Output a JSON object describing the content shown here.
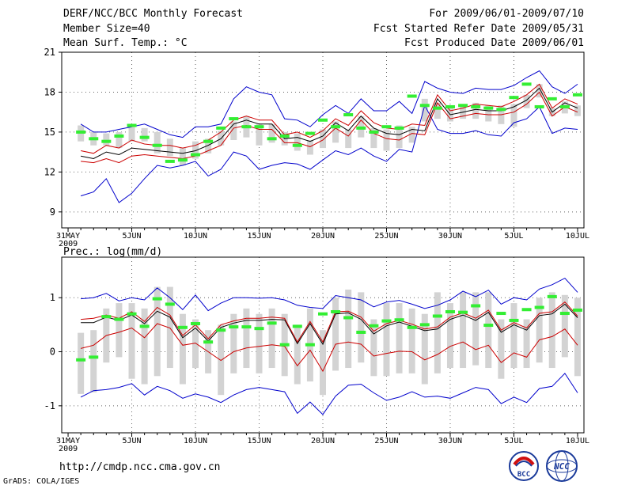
{
  "header": {
    "title": "DERF/NCC/BCC Monthly Forecast",
    "member_size": "Member Size=40",
    "variable1": "Mean Surf. Temp.: °C",
    "forecast_period": "For 2009/06/01-2009/07/10",
    "start_date": "Fcst Started Refer Date 2009/05/31",
    "produced_date": "Fcst Produced Date 2009/06/01"
  },
  "footer": {
    "url": "http://cmdp.ncc.cma.gov.cn",
    "credit": "GrADS: COLA/IGES",
    "logo1_text": "BCC",
    "logo2_text": "NCC"
  },
  "colors": {
    "blue": "#0000cc",
    "red": "#cc0000",
    "black": "#000000",
    "box": "#d3d3d3",
    "green": "#33ee33",
    "grid": "#666666"
  },
  "chart_data": [
    {
      "type": "ensemble",
      "title": "Mean Surf. Temp.: °C",
      "xlabel": "",
      "ylabel": "",
      "ylim": [
        7.8,
        21
      ],
      "yticks": [
        9,
        12,
        15,
        18,
        21
      ],
      "x_tick_labels": [
        "31MAY",
        "5JUN",
        "10JUN",
        "15JUN",
        "20JUN",
        "25JUN",
        "30JUN",
        "5JUL",
        "10JUL"
      ],
      "x_tick_days": [
        0,
        5,
        10,
        15,
        20,
        25,
        30,
        35,
        40
      ],
      "year_label": "2009",
      "day_start": 1,
      "series": [
        {
          "name": "max",
          "color": "#0000cc",
          "values": [
            10.2,
            10.5,
            11.5,
            9.7,
            10.4,
            11.5,
            12.5,
            12.3,
            12.5,
            12.8,
            11.7,
            12.2,
            13.5,
            13.2,
            12.2,
            12.5,
            12.7,
            12.6,
            12.2,
            12.9,
            13.6,
            13.3,
            13.8,
            13.2,
            12.8,
            13.7,
            13.5,
            17.0,
            15.2,
            14.9,
            14.9,
            15.1,
            14.8,
            14.7,
            15.7,
            16.0,
            16.9,
            14.9,
            15.3,
            15.2
          ]
        },
        {
          "name": "q_low",
          "color": "#cc0000",
          "values": [
            12.8,
            12.7,
            13.0,
            12.7,
            13.2,
            13.3,
            13.2,
            13.1,
            13.0,
            13.2,
            13.6,
            14.0,
            15.3,
            15.5,
            15.2,
            15.2,
            14.2,
            14.2,
            13.9,
            14.4,
            15.3,
            14.7,
            15.9,
            14.9,
            14.5,
            14.4,
            14.9,
            14.8,
            17.2,
            16.0,
            16.2,
            16.4,
            16.3,
            16.3,
            16.5,
            17.1,
            18.0,
            16.2,
            16.9,
            16.5
          ]
        },
        {
          "name": "mean",
          "color": "#000000",
          "values": [
            13.2,
            13.0,
            13.5,
            13.3,
            13.8,
            13.7,
            13.6,
            13.5,
            13.4,
            13.6,
            14.0,
            14.5,
            15.6,
            15.9,
            15.6,
            15.6,
            14.5,
            14.6,
            14.3,
            14.7,
            15.7,
            15.1,
            16.2,
            15.3,
            14.9,
            14.8,
            15.2,
            15.1,
            17.5,
            16.3,
            16.5,
            16.7,
            16.6,
            16.6,
            16.9,
            17.4,
            18.3,
            16.5,
            17.2,
            16.8
          ]
        },
        {
          "name": "q_high",
          "color": "#cc0000",
          "values": [
            13.6,
            13.4,
            14.0,
            13.8,
            14.4,
            14.1,
            14.0,
            14.0,
            13.8,
            14.0,
            14.4,
            15.0,
            15.9,
            16.2,
            15.9,
            15.9,
            14.8,
            15.0,
            14.6,
            15.1,
            16.0,
            15.5,
            16.6,
            15.7,
            15.3,
            15.2,
            15.6,
            15.5,
            17.8,
            16.6,
            16.8,
            17.1,
            17.0,
            16.9,
            17.3,
            17.8,
            18.6,
            16.8,
            17.5,
            17.1
          ]
        },
        {
          "name": "min",
          "color": "#0000cc",
          "values": [
            15.6,
            15.0,
            15.0,
            15.2,
            15.4,
            15.6,
            15.2,
            14.8,
            14.6,
            15.4,
            15.4,
            15.6,
            17.5,
            18.4,
            18.0,
            17.8,
            16.0,
            15.9,
            15.4,
            16.3,
            17.0,
            16.4,
            17.5,
            16.6,
            16.6,
            17.3,
            16.4,
            18.8,
            18.3,
            18.0,
            17.9,
            18.3,
            18.2,
            18.2,
            18.5,
            19.1,
            19.6,
            18.4,
            17.9,
            18.6
          ]
        }
      ],
      "boxes_low": [
        14.3,
        14.0,
        14.0,
        13.8,
        14.3,
        14.3,
        13.4,
        13.2,
        12.5,
        13.0,
        13.4,
        14.0,
        14.4,
        14.6,
        14.0,
        14.2,
        14.0,
        13.6,
        13.3,
        13.8,
        14.2,
        13.8,
        14.6,
        13.8,
        13.6,
        13.8,
        14.2,
        15.8,
        16.0,
        15.8,
        16.0,
        16.0,
        15.8,
        15.6,
        15.4,
        16.8,
        17.6,
        16.2,
        16.4,
        16.2
      ],
      "boxes_high": [
        15.5,
        15.0,
        14.9,
        15.0,
        15.6,
        15.3,
        15.0,
        14.5,
        13.8,
        14.3,
        14.5,
        15.1,
        15.8,
        16.2,
        15.6,
        15.6,
        15.0,
        14.9,
        14.4,
        15.2,
        15.8,
        15.2,
        16.2,
        15.3,
        15.2,
        15.5,
        15.4,
        17.5,
        17.2,
        16.9,
        17.0,
        17.2,
        17.0,
        17.0,
        17.1,
        17.8,
        18.6,
        16.8,
        17.3,
        17.0
      ],
      "observed": [
        15.0,
        14.5,
        14.3,
        14.7,
        15.5,
        14.6,
        14.0,
        12.8,
        12.9,
        13.3,
        14.3,
        15.3,
        16.0,
        15.4,
        15.4,
        14.5,
        14.7,
        14.0,
        14.9,
        15.9,
        15.4,
        16.3,
        15.3,
        15.0,
        15.4,
        15.3,
        17.7,
        17.0,
        16.8,
        16.9,
        17.0,
        16.9,
        16.8,
        16.7,
        17.6,
        18.6,
        16.9,
        17.5,
        16.9,
        17.8
      ]
    },
    {
      "type": "ensemble",
      "title": "Prec.: log(mm/d)",
      "xlabel": "",
      "ylabel": "",
      "ylim": [
        -1.5,
        1.75
      ],
      "yticks": [
        -1,
        0,
        1
      ],
      "x_tick_labels": [
        "31MAY",
        "5JUN",
        "10JUN",
        "15JUN",
        "20JUN",
        "25JUN",
        "30JUN",
        "5JUL",
        "10JUL"
      ],
      "x_tick_days": [
        0,
        5,
        10,
        15,
        20,
        25,
        30,
        35,
        40
      ],
      "year_label": "2009",
      "day_start": 1,
      "series": [
        {
          "name": "max",
          "color": "#0000cc",
          "values": [
            -0.84,
            -0.72,
            -0.7,
            -0.66,
            -0.59,
            -0.8,
            -0.64,
            -0.72,
            -0.86,
            -0.78,
            -0.84,
            -0.94,
            -0.8,
            -0.7,
            -0.66,
            -0.7,
            -0.74,
            -1.14,
            -0.93,
            -1.16,
            -0.82,
            -0.62,
            -0.6,
            -0.76,
            -0.9,
            -0.84,
            -0.74,
            -0.84,
            -0.82,
            -0.86,
            -0.76,
            -0.66,
            -0.7,
            -0.96,
            -0.84,
            -0.94,
            -0.68,
            -0.64,
            -0.4,
            -0.76
          ]
        },
        {
          "name": "q_low",
          "color": "#cc0000",
          "values": [
            0.06,
            0.12,
            0.3,
            0.36,
            0.44,
            0.26,
            0.52,
            0.44,
            0.12,
            0.16,
            0.0,
            -0.16,
            0.0,
            0.07,
            0.1,
            0.13,
            0.1,
            -0.26,
            0.03,
            -0.36,
            0.14,
            0.18,
            0.14,
            -0.08,
            -0.03,
            0.01,
            0.0,
            -0.15,
            -0.05,
            0.1,
            0.18,
            0.04,
            0.12,
            -0.2,
            -0.02,
            -0.1,
            0.22,
            0.28,
            0.42,
            0.12
          ]
        },
        {
          "name": "mean",
          "color": "#000000",
          "values": [
            0.54,
            0.54,
            0.64,
            0.58,
            0.68,
            0.52,
            0.75,
            0.64,
            0.26,
            0.44,
            0.2,
            0.45,
            0.53,
            0.58,
            0.58,
            0.6,
            0.59,
            0.15,
            0.52,
            0.14,
            0.7,
            0.72,
            0.6,
            0.33,
            0.48,
            0.55,
            0.47,
            0.39,
            0.42,
            0.6,
            0.68,
            0.58,
            0.73,
            0.36,
            0.5,
            0.4,
            0.67,
            0.7,
            0.88,
            0.63
          ]
        },
        {
          "name": "q_high",
          "color": "#cc0000",
          "values": [
            0.6,
            0.62,
            0.68,
            0.62,
            0.74,
            0.56,
            0.82,
            0.68,
            0.3,
            0.5,
            0.24,
            0.5,
            0.57,
            0.62,
            0.62,
            0.64,
            0.62,
            0.18,
            0.56,
            0.18,
            0.74,
            0.75,
            0.64,
            0.38,
            0.52,
            0.58,
            0.51,
            0.42,
            0.46,
            0.64,
            0.72,
            0.62,
            0.77,
            0.4,
            0.54,
            0.44,
            0.71,
            0.74,
            0.92,
            0.66
          ]
        },
        {
          "name": "min",
          "color": "#0000cc",
          "values": [
            0.98,
            1.0,
            1.08,
            0.94,
            1.0,
            0.96,
            1.18,
            1.0,
            0.78,
            1.05,
            0.76,
            0.9,
            1.0,
            1.0,
            0.99,
            1.0,
            0.96,
            0.86,
            0.82,
            0.8,
            1.04,
            1.0,
            0.96,
            0.83,
            0.92,
            0.95,
            0.88,
            0.8,
            0.86,
            0.96,
            1.12,
            1.02,
            1.14,
            0.88,
            1.0,
            0.96,
            1.16,
            1.24,
            1.36,
            1.1
          ]
        }
      ],
      "boxes_low": [
        -0.78,
        -0.75,
        -0.2,
        -0.1,
        -0.5,
        -0.6,
        -0.45,
        -0.3,
        -0.6,
        -0.3,
        -0.4,
        -0.8,
        -0.4,
        -0.3,
        -0.4,
        -0.3,
        -0.45,
        -0.6,
        -0.55,
        -0.8,
        -0.35,
        -0.3,
        -0.2,
        -0.45,
        -0.45,
        -0.4,
        -0.4,
        -0.6,
        -0.4,
        -0.3,
        -0.3,
        -0.25,
        -0.3,
        -0.5,
        -0.3,
        -0.3,
        -0.2,
        -0.3,
        -0.1,
        -0.45
      ],
      "boxes_high": [
        0.35,
        0.4,
        0.8,
        0.9,
        0.9,
        0.8,
        1.2,
        1.2,
        0.7,
        0.6,
        0.4,
        0.5,
        0.7,
        0.8,
        0.7,
        0.8,
        0.7,
        0.5,
        0.8,
        0.4,
        1.0,
        1.15,
        1.1,
        0.6,
        0.9,
        0.9,
        0.8,
        0.7,
        1.1,
        0.9,
        1.1,
        1.1,
        1.1,
        0.6,
        0.9,
        0.6,
        1.0,
        1.1,
        1.05,
        1.0
      ],
      "observed": [
        -0.15,
        -0.1,
        0.65,
        0.6,
        0.7,
        0.47,
        0.98,
        0.88,
        0.45,
        0.52,
        0.18,
        0.4,
        0.46,
        0.46,
        0.43,
        0.53,
        0.13,
        0.47,
        0.13,
        0.7,
        0.74,
        0.63,
        0.36,
        0.48,
        0.57,
        0.59,
        0.45,
        0.5,
        0.66,
        0.74,
        0.73,
        0.85,
        0.49,
        0.71,
        0.58,
        0.78,
        0.82,
        1.02,
        0.71,
        0.77
      ]
    }
  ]
}
